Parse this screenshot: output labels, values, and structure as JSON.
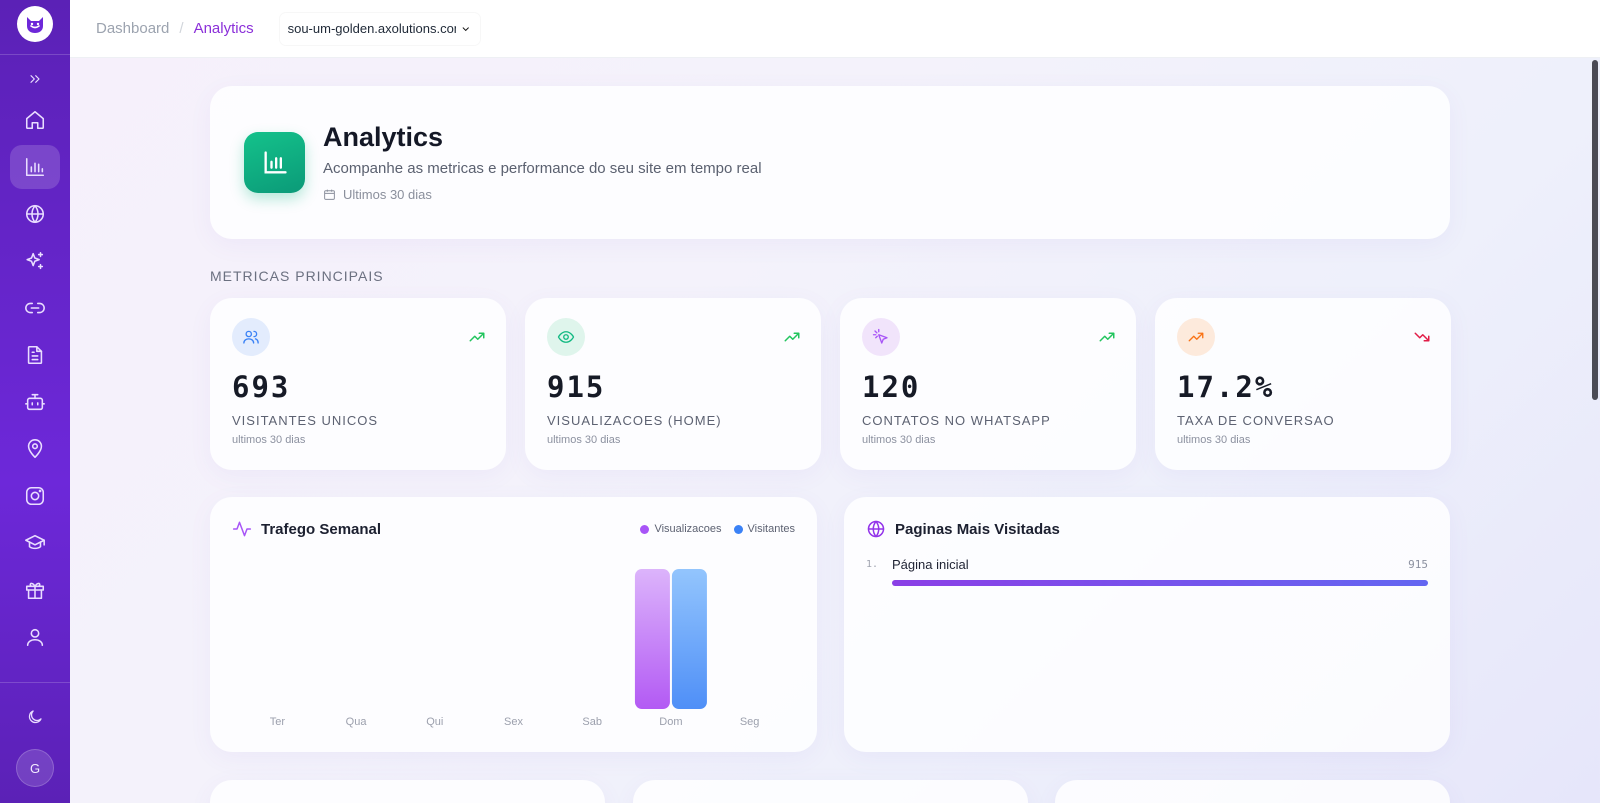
{
  "topbar": {
    "breadcrumb_root": "Dashboard",
    "breadcrumb_current": "Analytics",
    "site_selector": "sou-um-golden.axolutions.com"
  },
  "sidebar": {
    "items": [
      {
        "name": "home",
        "icon": "home-icon"
      },
      {
        "name": "analytics",
        "icon": "bar-chart-icon",
        "active": true
      },
      {
        "name": "sites",
        "icon": "globe-icon"
      },
      {
        "name": "ai",
        "icon": "sparkles-icon"
      },
      {
        "name": "links",
        "icon": "link-icon"
      },
      {
        "name": "documents",
        "icon": "document-icon"
      },
      {
        "name": "bot",
        "icon": "bot-icon"
      },
      {
        "name": "location",
        "icon": "map-pin-icon"
      },
      {
        "name": "instagram",
        "icon": "instagram-icon"
      },
      {
        "name": "courses",
        "icon": "graduation-cap-icon"
      },
      {
        "name": "gifts",
        "icon": "gift-icon"
      },
      {
        "name": "profile",
        "icon": "user-icon"
      }
    ],
    "theme_toggle": "moon-icon",
    "avatar_initial": "G"
  },
  "hero": {
    "title": "Analytics",
    "subtitle": "Acompanhe as metricas e performance do seu site em tempo real",
    "range": "Ultimos 30 dias"
  },
  "metrics_section_title": "METRICAS PRINCIPAIS",
  "metrics": [
    {
      "value": "693",
      "label": "VISITANTES UNICOS",
      "period": "ultimos 30 dias",
      "trend": "up",
      "color": "#3b82f6",
      "icon": "users-icon"
    },
    {
      "value": "915",
      "label": "VISUALIZACOES (HOME)",
      "period": "ultimos 30 dias",
      "trend": "up",
      "color": "#10b981",
      "icon": "eye-icon"
    },
    {
      "value": "120",
      "label": "CONTATOS NO WHATSAPP",
      "period": "ultimos 30 dias",
      "trend": "up",
      "color": "#a855f7",
      "icon": "pointer-click-icon"
    },
    {
      "value": "17.2%",
      "label": "TAXA DE CONVERSAO",
      "period": "ultimos 30 dias",
      "trend": "down",
      "color": "#f97316",
      "icon": "trending-up-icon"
    }
  ],
  "traffic": {
    "title": "Trafego Semanal",
    "legend": [
      "Visualizacoes",
      "Visitantes"
    ]
  },
  "chart_data": {
    "type": "bar",
    "title": "Trafego Semanal",
    "categories": [
      "Ter",
      "Qua",
      "Qui",
      "Sex",
      "Sab",
      "Dom",
      "Seg"
    ],
    "series": [
      {
        "name": "Visualizacoes",
        "values": [
          0,
          0,
          0,
          0,
          0,
          1,
          0
        ],
        "color": "#c084fc"
      },
      {
        "name": "Visitantes",
        "values": [
          0,
          0,
          0,
          0,
          0,
          1,
          0
        ],
        "color": "#60a5fa"
      }
    ],
    "ylim": [
      0,
      1
    ],
    "grid": false,
    "legend_position": "top-right"
  },
  "top_pages": {
    "title": "Paginas Mais Visitadas",
    "items": [
      {
        "rank": "1.",
        "name": "Página inicial",
        "count": "915",
        "fraction": 1.0
      }
    ]
  },
  "colors": {
    "sidebar": "#6d28d9",
    "accent": "#8b2fd9",
    "trend_up": "#22c55e",
    "trend_down": "#e11d48"
  }
}
